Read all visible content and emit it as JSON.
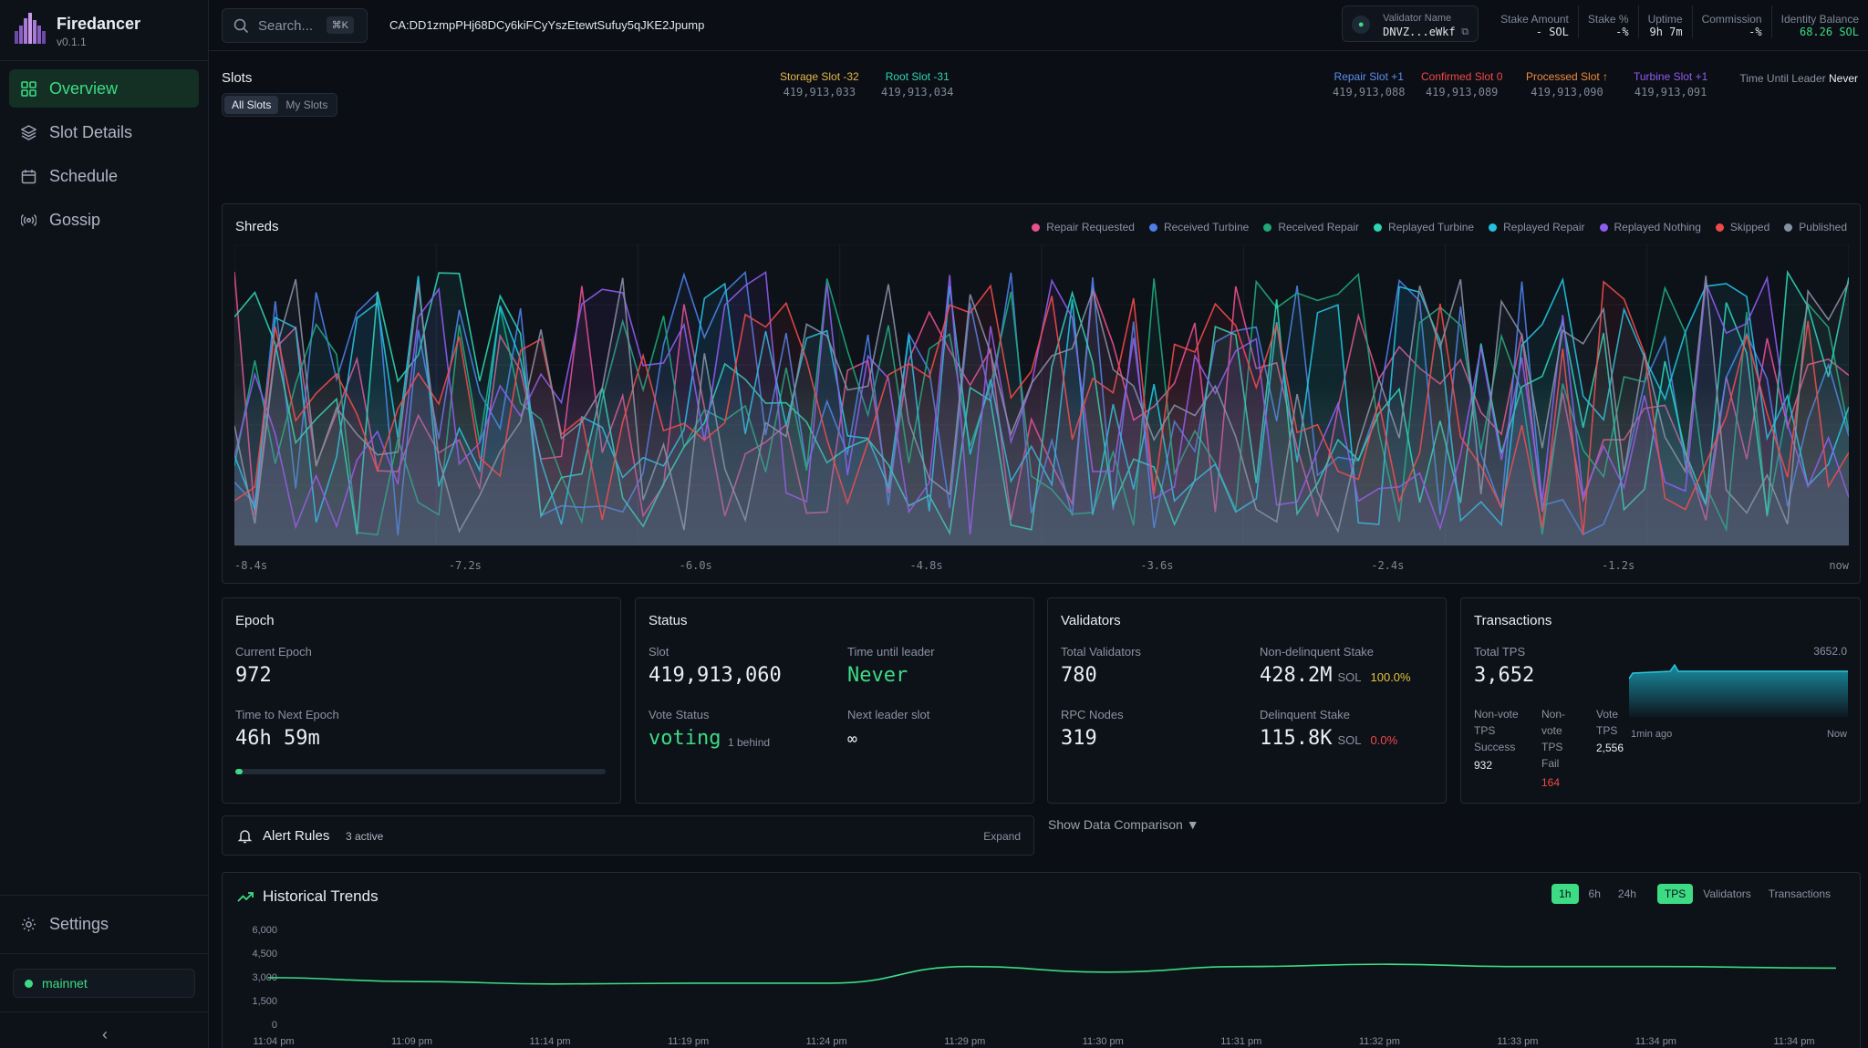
{
  "brand": {
    "name": "Firedancer",
    "version": "v0.1.1"
  },
  "nav": {
    "items": [
      {
        "label": "Overview",
        "icon": "grid-icon"
      },
      {
        "label": "Slot Details",
        "icon": "layers-icon"
      },
      {
        "label": "Schedule",
        "icon": "calendar-icon"
      },
      {
        "label": "Gossip",
        "icon": "broadcast-icon"
      }
    ],
    "settings": "Settings",
    "network": "mainnet",
    "collapse": "‹"
  },
  "topbar": {
    "search_placeholder": "Search...",
    "search_shortcut": "⌘K",
    "contract": "CA:DD1zmpPHj68DCy6kiFCyYszEtewtSufuy5qJKE2Jpump",
    "validator_label": "Validator Name",
    "validator_value": "DNVZ...eWkf",
    "stats": [
      {
        "label": "Stake Amount",
        "value": "- SOL"
      },
      {
        "label": "Stake %",
        "value": "-%"
      },
      {
        "label": "Uptime",
        "value": "9h 7m"
      },
      {
        "label": "Commission",
        "value": "-%"
      },
      {
        "label": "Identity Balance",
        "value": "68.26 SOL"
      }
    ]
  },
  "slots": {
    "title": "Slots",
    "toggle": [
      "All Slots",
      "My Slots"
    ],
    "storage_label": "Storage Slot -32",
    "storage_value": "419,913,033",
    "root_label": "Root Slot -31",
    "root_value": "419,913,034",
    "repair_label": "Repair Slot +1",
    "repair_value": "419,913,088",
    "confirmed_label": "Confirmed Slot 0",
    "confirmed_value": "419,913,089",
    "processed_label": "Processed Slot ↑",
    "processed_value": "419,913,090",
    "turbine_label": "Turbine Slot +1",
    "turbine_value": "419,913,091",
    "leader_label": "Time Until Leader",
    "leader_value": "Never"
  },
  "shreds": {
    "title": "Shreds",
    "legend": [
      {
        "name": "Repair Requested",
        "color": "#e8508f"
      },
      {
        "name": "Received Turbine",
        "color": "#4d7fe8"
      },
      {
        "name": "Received Repair",
        "color": "#1fa77a"
      },
      {
        "name": "Replayed Turbine",
        "color": "#2dd4b4"
      },
      {
        "name": "Replayed Repair",
        "color": "#22c3e0"
      },
      {
        "name": "Replayed Nothing",
        "color": "#8e5cf0"
      },
      {
        "name": "Skipped",
        "color": "#ef4a4a"
      },
      {
        "name": "Published",
        "color": "#8690a3"
      }
    ],
    "xticks": [
      "-8.4s",
      "-7.2s",
      "-6.0s",
      "-4.8s",
      "-3.6s",
      "-2.4s",
      "-1.2s",
      "now"
    ]
  },
  "epoch": {
    "title": "Epoch",
    "current_label": "Current Epoch",
    "current_value": "972",
    "next_label": "Time to Next Epoch",
    "next_value": "46h 59m",
    "progress": 0.015
  },
  "status": {
    "title": "Status",
    "slot_label": "Slot",
    "slot_value": "419,913,060",
    "leader_label": "Time until leader",
    "leader_value": "Never",
    "vote_label": "Vote Status",
    "vote_value": "voting",
    "vote_behind": "1 behind",
    "next_label": "Next leader slot",
    "next_value": "∞"
  },
  "validators": {
    "title": "Validators",
    "total_label": "Total Validators",
    "total_value": "780",
    "nondelinq_label": "Non-delinquent Stake",
    "nondelinq_value": "428.2M",
    "nondelinq_unit": "SOL",
    "nondelinq_pct": "100.0%",
    "rpc_label": "RPC Nodes",
    "rpc_value": "319",
    "delinq_label": "Delinquent Stake",
    "delinq_value": "115.8K",
    "delinq_unit": "SOL",
    "delinq_pct": "0.0%"
  },
  "transactions": {
    "title": "Transactions",
    "total_label": "Total TPS",
    "total_value": "3,652",
    "peak": "3652.0",
    "nv_success_label": "Non-vote TPS Success",
    "nv_success_value": "932",
    "nv_fail_label": "Non-vote TPS Fail",
    "nv_fail_value": "164",
    "vote_label": "Vote TPS",
    "vote_value": "2,556",
    "x_start": "1min ago",
    "x_end": "Now"
  },
  "alerts": {
    "title": "Alert Rules",
    "count": "3 active",
    "expand": "Expand"
  },
  "compare": "Show Data Comparison ▼",
  "historical": {
    "title": "Historical Trends",
    "ranges": [
      "1h",
      "6h",
      "24h"
    ],
    "metrics": [
      "TPS",
      "Validators",
      "Transactions"
    ],
    "yticks": [
      "6,000",
      "4,500",
      "3,000",
      "1,500",
      "0"
    ],
    "xticks": [
      "11:04 pm",
      "11:09 pm",
      "11:14 pm",
      "11:19 pm",
      "11:24 pm",
      "11:29 pm",
      "11:30 pm",
      "11:31 pm",
      "11:32 pm",
      "11:33 pm",
      "11:34 pm",
      "11:34 pm"
    ]
  },
  "chart_data": {
    "type": "line",
    "title": "Historical Trends",
    "ylim": [
      0,
      6000
    ],
    "categories": [
      "11:04 pm",
      "11:09 pm",
      "11:14 pm",
      "11:19 pm",
      "11:24 pm",
      "11:29 pm",
      "11:30 pm",
      "11:31 pm",
      "11:32 pm",
      "11:33 pm",
      "11:34 pm",
      "11:34 pm"
    ],
    "series": [
      {
        "name": "TPS",
        "values": [
          2950,
          2700,
          2550,
          2600,
          2600,
          3650,
          3300,
          3650,
          3800,
          3650,
          3650,
          3550
        ]
      }
    ]
  }
}
